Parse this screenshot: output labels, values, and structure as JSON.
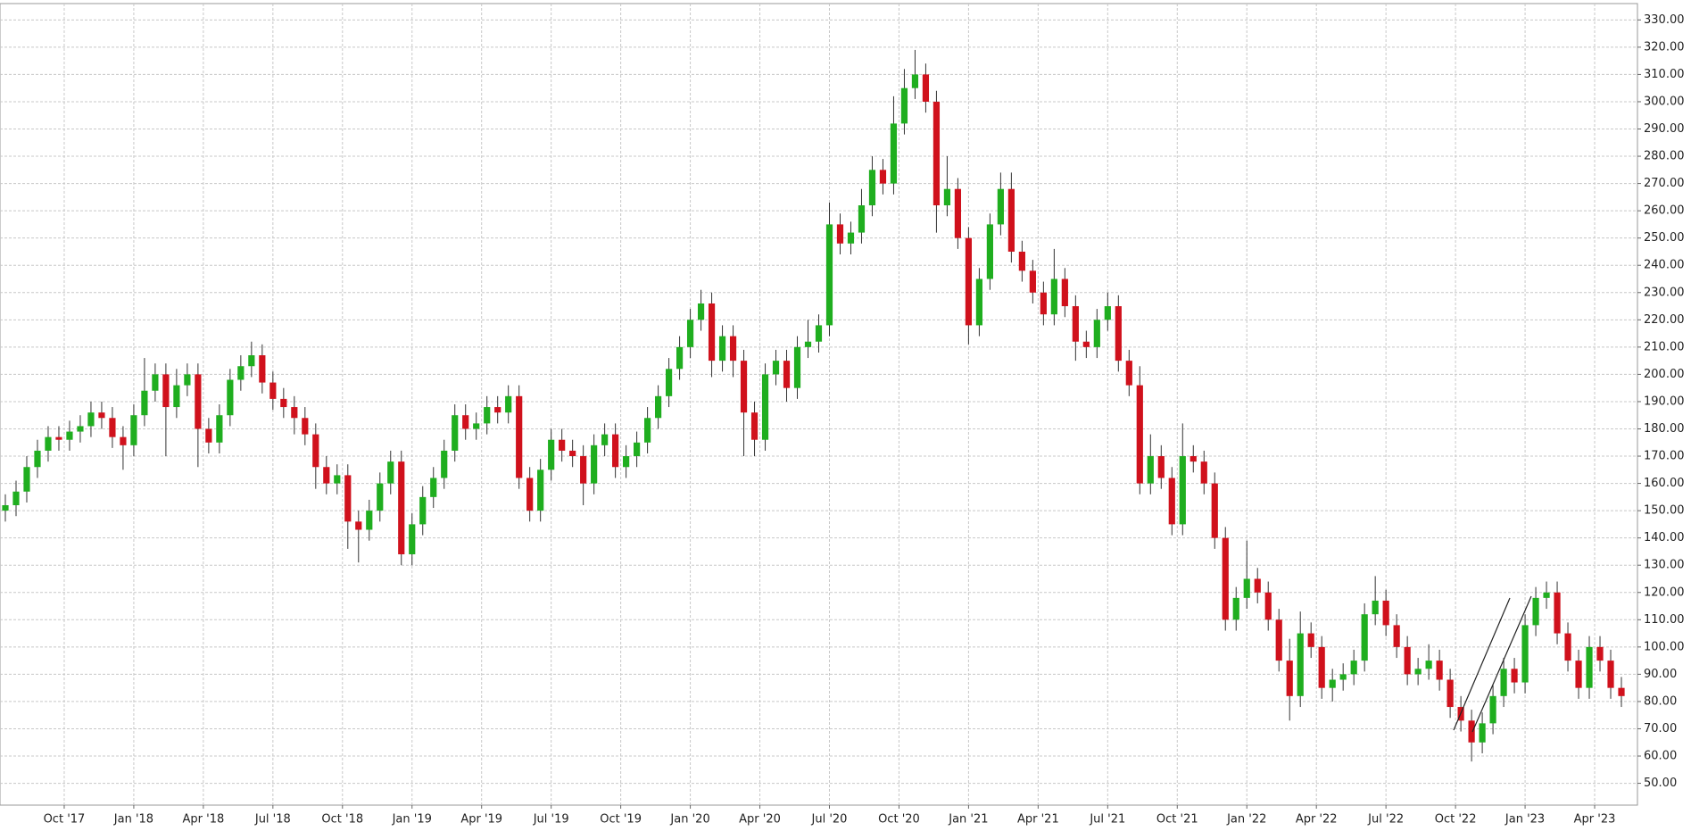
{
  "chart_data": {
    "type": "candlestick",
    "up_color": "#1fae1f",
    "down_color": "#d0111c",
    "wick_color": "#333333",
    "open": [
      150,
      152,
      157,
      166,
      172,
      177,
      176,
      179,
      181,
      186,
      184,
      177,
      174,
      185,
      194,
      200,
      188,
      196,
      200,
      180,
      175,
      185,
      198,
      203,
      207,
      197,
      191,
      188,
      184,
      178,
      166,
      160,
      163,
      146,
      143,
      150,
      160,
      168,
      134,
      145,
      155,
      162,
      172,
      185,
      180,
      182,
      188,
      186,
      192,
      162,
      150,
      165,
      176,
      172,
      170,
      160,
      174,
      178,
      166,
      170,
      175,
      184,
      192,
      202,
      210,
      220,
      226,
      205,
      214,
      205,
      186,
      176,
      200,
      205,
      195,
      210,
      212,
      218,
      255,
      248,
      252,
      262,
      275,
      270,
      292,
      305,
      310,
      300,
      262,
      268,
      250,
      218,
      235,
      255,
      268,
      245,
      238,
      230,
      222,
      235,
      225,
      212,
      210,
      220,
      225,
      205,
      196,
      160,
      170,
      162,
      145,
      170,
      168,
      160,
      140,
      110,
      118,
      125,
      120,
      110,
      95,
      82,
      105,
      100,
      85,
      88,
      90,
      95,
      112,
      117,
      108,
      100,
      90,
      92,
      95,
      88,
      78,
      73,
      65,
      72,
      82,
      92,
      87,
      108,
      118,
      120,
      105,
      95,
      85,
      100,
      95,
      85
    ],
    "high": [
      156,
      161,
      170,
      176,
      181,
      181,
      183,
      185,
      190,
      190,
      188,
      181,
      189,
      206,
      204,
      204,
      202,
      204,
      204,
      184,
      189,
      202,
      207,
      212,
      211,
      201,
      195,
      192,
      188,
      182,
      170,
      167,
      167,
      150,
      154,
      164,
      172,
      172,
      149,
      159,
      166,
      176,
      189,
      189,
      186,
      192,
      192,
      196,
      196,
      166,
      169,
      180,
      180,
      176,
      174,
      178,
      182,
      182,
      174,
      179,
      188,
      196,
      206,
      214,
      224,
      231,
      230,
      218,
      218,
      209,
      190,
      204,
      209,
      209,
      214,
      220,
      222,
      263,
      259,
      256,
      268,
      280,
      279,
      302,
      312,
      319,
      314,
      304,
      280,
      272,
      254,
      239,
      259,
      274,
      274,
      249,
      242,
      234,
      246,
      239,
      229,
      216,
      224,
      230,
      229,
      209,
      203,
      178,
      174,
      166,
      182,
      174,
      172,
      164,
      144,
      122,
      139,
      129,
      124,
      114,
      103,
      113,
      109,
      104,
      92,
      94,
      99,
      116,
      126,
      121,
      112,
      104,
      96,
      101,
      99,
      92,
      82,
      77,
      76,
      86,
      96,
      96,
      112,
      122,
      124,
      124,
      109,
      99,
      104,
      104,
      99,
      89
    ],
    "low": [
      146,
      148,
      153,
      162,
      168,
      172,
      172,
      175,
      177,
      180,
      173,
      165,
      170,
      181,
      190,
      170,
      184,
      192,
      166,
      171,
      171,
      181,
      194,
      199,
      193,
      187,
      184,
      178,
      174,
      158,
      156,
      156,
      136,
      131,
      139,
      146,
      156,
      130,
      130,
      141,
      151,
      158,
      168,
      176,
      176,
      178,
      182,
      182,
      158,
      146,
      146,
      161,
      168,
      166,
      152,
      156,
      170,
      162,
      162,
      166,
      171,
      180,
      188,
      198,
      206,
      216,
      199,
      201,
      199,
      170,
      170,
      172,
      196,
      190,
      191,
      206,
      208,
      214,
      244,
      244,
      248,
      258,
      266,
      266,
      288,
      301,
      296,
      252,
      258,
      246,
      211,
      214,
      231,
      251,
      241,
      234,
      226,
      218,
      218,
      221,
      205,
      206,
      206,
      216,
      201,
      192,
      156,
      156,
      158,
      141,
      141,
      164,
      156,
      136,
      106,
      106,
      114,
      116,
      106,
      91,
      73,
      78,
      96,
      81,
      80,
      84,
      86,
      91,
      108,
      104,
      96,
      86,
      86,
      88,
      84,
      74,
      69,
      58,
      61,
      68,
      78,
      83,
      83,
      104,
      114,
      101,
      91,
      81,
      81,
      91,
      81,
      78
    ],
    "close": [
      152,
      157,
      166,
      172,
      177,
      176,
      179,
      181,
      186,
      184,
      177,
      174,
      185,
      194,
      200,
      188,
      196,
      200,
      180,
      175,
      185,
      198,
      203,
      207,
      197,
      191,
      188,
      184,
      178,
      166,
      160,
      163,
      146,
      143,
      150,
      160,
      168,
      134,
      145,
      155,
      162,
      172,
      185,
      180,
      182,
      188,
      186,
      192,
      162,
      150,
      165,
      176,
      172,
      170,
      160,
      174,
      178,
      166,
      170,
      175,
      184,
      192,
      202,
      210,
      220,
      226,
      205,
      214,
      205,
      186,
      176,
      200,
      205,
      195,
      210,
      212,
      218,
      255,
      248,
      252,
      262,
      275,
      270,
      292,
      305,
      310,
      300,
      262,
      268,
      250,
      218,
      235,
      255,
      268,
      245,
      238,
      230,
      222,
      235,
      225,
      212,
      210,
      220,
      225,
      205,
      196,
      160,
      170,
      162,
      145,
      170,
      168,
      160,
      140,
      110,
      118,
      125,
      120,
      110,
      95,
      82,
      105,
      100,
      85,
      88,
      90,
      95,
      112,
      117,
      108,
      100,
      90,
      92,
      95,
      88,
      78,
      73,
      65,
      72,
      82,
      92,
      87,
      108,
      118,
      120,
      105,
      95,
      85,
      100,
      95,
      85,
      82
    ],
    "xlim": [
      -0.5,
      152.5
    ],
    "xticks": [
      {
        "value": 5.5,
        "label": "Oct '17"
      },
      {
        "value": 12,
        "label": "Jan '18"
      },
      {
        "value": 18.5,
        "label": "Apr '18"
      },
      {
        "value": 25,
        "label": "Jul '18"
      },
      {
        "value": 31.5,
        "label": "Oct '18"
      },
      {
        "value": 38,
        "label": "Jan '19"
      },
      {
        "value": 44.5,
        "label": "Apr '19"
      },
      {
        "value": 51,
        "label": "Jul '19"
      },
      {
        "value": 57.5,
        "label": "Oct '19"
      },
      {
        "value": 64,
        "label": "Jan '20"
      },
      {
        "value": 70.5,
        "label": "Apr '20"
      },
      {
        "value": 77,
        "label": "Jul '20"
      },
      {
        "value": 83.5,
        "label": "Oct '20"
      },
      {
        "value": 90,
        "label": "Jan '21"
      },
      {
        "value": 96.5,
        "label": "Apr '21"
      },
      {
        "value": 103,
        "label": "Jul '21"
      },
      {
        "value": 109.5,
        "label": "Oct '21"
      },
      {
        "value": 116,
        "label": "Jan '22"
      },
      {
        "value": 122.5,
        "label": "Apr '22"
      },
      {
        "value": 129,
        "label": "Jul '22"
      },
      {
        "value": 135.5,
        "label": "Oct '22"
      },
      {
        "value": 142,
        "label": "Jan '23"
      },
      {
        "value": 148.5,
        "label": "Apr '23"
      }
    ],
    "ylim": [
      42,
      336
    ],
    "yticks": [
      {
        "value": 50,
        "label": "50.00"
      },
      {
        "value": 60,
        "label": "60.00"
      },
      {
        "value": 70,
        "label": "70.00"
      },
      {
        "value": 80,
        "label": "80.00"
      },
      {
        "value": 90,
        "label": "90.00"
      },
      {
        "value": 100,
        "label": "100.00"
      },
      {
        "value": 110,
        "label": "110.00"
      },
      {
        "value": 120,
        "label": "120.00"
      },
      {
        "value": 130,
        "label": "130.00"
      },
      {
        "value": 140,
        "label": "140.00"
      },
      {
        "value": 150,
        "label": "150.00"
      },
      {
        "value": 160,
        "label": "160.00"
      },
      {
        "value": 170,
        "label": "170.00"
      },
      {
        "value": 180,
        "label": "180.00"
      },
      {
        "value": 190,
        "label": "190.00"
      },
      {
        "value": 200,
        "label": "200.00"
      },
      {
        "value": 210,
        "label": "210.00"
      },
      {
        "value": 220,
        "label": "220.00"
      },
      {
        "value": 230,
        "label": "230.00"
      },
      {
        "value": 240,
        "label": "240.00"
      },
      {
        "value": 250,
        "label": "250.00"
      },
      {
        "value": 260,
        "label": "260.00"
      },
      {
        "value": 270,
        "label": "270.00"
      },
      {
        "value": 280,
        "label": "280.00"
      },
      {
        "value": 290,
        "label": "290.00"
      },
      {
        "value": 300,
        "label": "300.00"
      },
      {
        "value": 310,
        "label": "310.00"
      },
      {
        "value": 320,
        "label": "320.00"
      },
      {
        "value": 330,
        "label": "330.00"
      }
    ],
    "grid": true
  }
}
